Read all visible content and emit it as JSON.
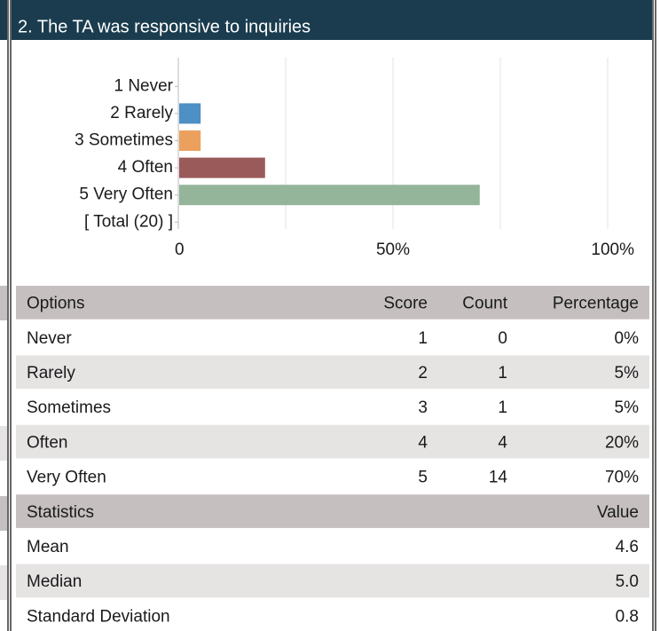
{
  "header": {
    "title": "2. The TA was responsive to inquiries"
  },
  "chart_data": {
    "type": "bar",
    "orientation": "horizontal",
    "categories": [
      "1 Never",
      "2 Rarely",
      "3 Sometimes",
      "4 Often",
      "5 Very Often",
      "[ Total (20) ]"
    ],
    "values": [
      0,
      5,
      5,
      20,
      70,
      null
    ],
    "colors": [
      "#4e8fc4",
      "#4e8fc4",
      "#eba05e",
      "#9b5a5a",
      "#95b59a",
      "#95b59a"
    ],
    "xlim": [
      0,
      100
    ],
    "xticks": [
      0,
      {
        "value": 50,
        "label": "50%"
      },
      {
        "value": 100,
        "label": "100%"
      }
    ],
    "minor_xticks": [
      25,
      75
    ],
    "grid": true
  },
  "table": {
    "header": [
      "Options",
      "Score",
      "Count",
      "Percentage"
    ],
    "rows": [
      [
        "Never",
        1,
        0,
        "0%"
      ],
      [
        "Rarely",
        2,
        1,
        "5%"
      ],
      [
        "Sometimes",
        3,
        1,
        "5%"
      ],
      [
        "Often",
        4,
        4,
        "20%"
      ],
      [
        "Very Often",
        5,
        14,
        "70%"
      ]
    ]
  },
  "statistics": {
    "header": [
      "Statistics",
      "Value"
    ],
    "rows": [
      [
        "Mean",
        "4.6"
      ],
      [
        "Median",
        "5.0"
      ],
      [
        "Standard Deviation",
        "0.8"
      ]
    ]
  }
}
